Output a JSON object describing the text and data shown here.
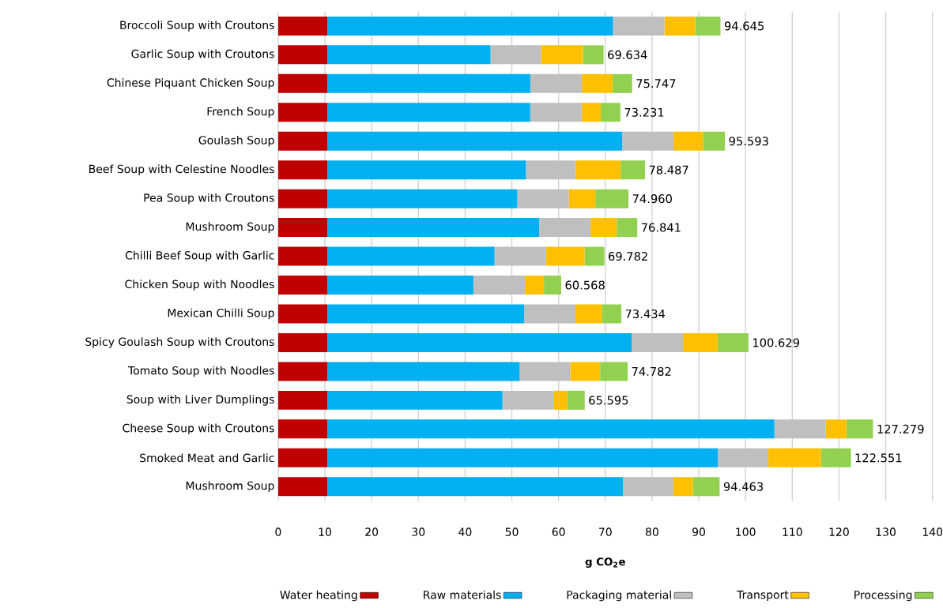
{
  "chart_data": {
    "type": "bar",
    "orientation": "horizontal",
    "stacked": true,
    "categories": [
      "Broccoli Soup with Croutons",
      "Garlic Soup with Croutons",
      "Chinese Piquant Chicken Soup",
      "French Soup",
      "Goulash Soup",
      "Beef Soup with Celestine Noodles",
      "Pea Soup with Croutons",
      "Mushroom Soup",
      "Chilli Beef Soup with Garlic",
      "Chicken Soup with Noodles",
      "Mexican Chilli Soup",
      "Spicy Goulash Soup with Croutons",
      "Tomato Soup with Noodles",
      "Soup with Liver Dumplings",
      "Cheese Soup with Croutons",
      "Smoked Meat and Garlic",
      "Mushroom Soup"
    ],
    "series": [
      {
        "name": "Water heating",
        "color": "#c00000",
        "values": [
          10.6,
          10.6,
          10.6,
          10.6,
          10.6,
          10.6,
          10.6,
          10.6,
          10.6,
          10.6,
          10.6,
          10.6,
          10.6,
          10.6,
          10.6,
          10.6,
          10.6
        ]
      },
      {
        "name": "Raw materials",
        "color": "#00b0f0",
        "values": [
          61.045,
          34.834,
          43.347,
          43.331,
          62.993,
          42.387,
          40.56,
          45.241,
          35.682,
          31.168,
          42.034,
          65.029,
          41.082,
          37.395,
          95.579,
          83.451,
          63.163
        ]
      },
      {
        "name": "Packaging material",
        "color": "#bfbfbf",
        "values": [
          11.0,
          10.8,
          11.0,
          11.0,
          11.0,
          10.7,
          11.0,
          11.0,
          11.0,
          11.0,
          11.0,
          11.0,
          10.8,
          11.0,
          11.0,
          10.8,
          10.8
        ]
      },
      {
        "name": "Transport",
        "color": "#ffc000",
        "values": [
          6.6,
          9.0,
          6.6,
          4.1,
          6.3,
          9.6,
          5.7,
          5.6,
          8.3,
          4.1,
          5.6,
          7.4,
          6.4,
          2.9,
          4.4,
          11.3,
          4.2
        ]
      },
      {
        "name": "Processing",
        "color": "#92d050",
        "values": [
          5.4,
          4.4,
          4.2,
          4.2,
          4.7,
          5.2,
          7.1,
          4.4,
          4.2,
          3.7,
          4.2,
          6.6,
          5.9,
          3.7,
          5.7,
          6.4,
          5.7
        ]
      }
    ],
    "totals": [
      "94.645",
      "69.634",
      "75.747",
      "73.231",
      "95.593",
      "78.487",
      "74.960",
      "76.841",
      "69.782",
      "60.568",
      "73.434",
      "100.629",
      "74.782",
      "65.595",
      "127.279",
      "122.551",
      "94.463"
    ],
    "xlim": [
      0,
      140
    ],
    "xticks": [
      0,
      10,
      20,
      30,
      40,
      50,
      60,
      70,
      80,
      90,
      100,
      110,
      120,
      130,
      140
    ],
    "xlabel": "g CO$_{2}$e",
    "grid": "x",
    "legend": "bottom"
  }
}
